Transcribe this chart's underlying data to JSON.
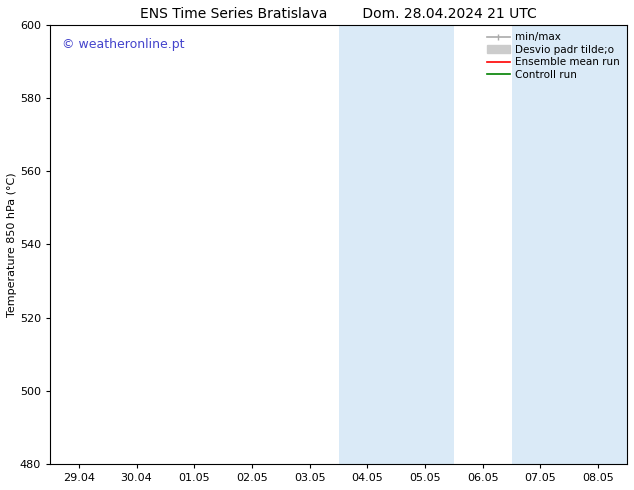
{
  "title_left": "ENS Time Series Bratislava",
  "title_right": "Dom. 28.04.2024 21 UTC",
  "ylabel": "Temperature 850 hPa (°C)",
  "xlabel_ticks": [
    "29.04",
    "30.04",
    "01.05",
    "02.05",
    "03.05",
    "04.05",
    "05.05",
    "06.05",
    "07.05",
    "08.05"
  ],
  "ylim": [
    480,
    600
  ],
  "yticks": [
    480,
    500,
    520,
    540,
    560,
    580,
    600
  ],
  "bg_color": "#ffffff",
  "plot_bg_color": "#ffffff",
  "shaded_regions": [
    {
      "xstart": 5,
      "xend": 6,
      "color": "#daeaf7"
    },
    {
      "xstart": 6,
      "xend": 7,
      "color": "#daeaf7"
    },
    {
      "xstart": 8,
      "xend": 9,
      "color": "#daeaf7"
    },
    {
      "xstart": 9,
      "xend": 10,
      "color": "#daeaf7"
    }
  ],
  "watermark_text": "© weatheronline.pt",
  "watermark_color": "#4444cc",
  "legend_label_minmax": "min/max",
  "legend_label_desvio": "Desvio padr tilde;o",
  "legend_label_ensemble": "Ensemble mean run",
  "legend_label_controll": "Controll run",
  "color_minmax": "#aaaaaa",
  "color_desvio": "#cccccc",
  "color_ensemble": "#ff0000",
  "color_controll": "#008000",
  "grid_color": "#bbbbbb",
  "tick_label_fontsize": 8,
  "title_fontsize": 10,
  "ylabel_fontsize": 8,
  "watermark_fontsize": 9,
  "legend_fontsize": 7.5
}
